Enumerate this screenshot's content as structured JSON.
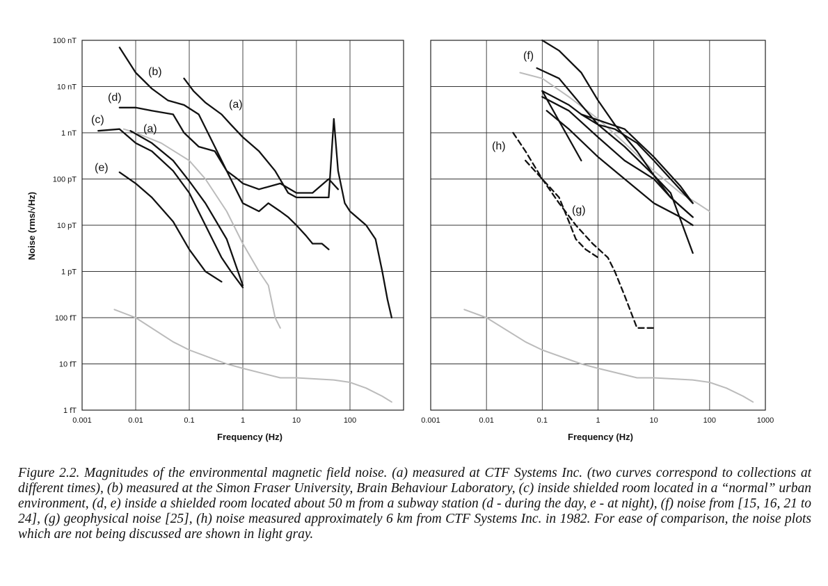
{
  "chart_data": [
    {
      "type": "line",
      "panel": "left",
      "xscale": "log",
      "yscale": "log",
      "xlim": [
        0.001,
        1000
      ],
      "ylim": [
        1e-15,
        1e-07
      ],
      "grid": true,
      "xlabel": "Frequency (Hz)",
      "ylabel": "Noise (rms/√Hz)",
      "xticks": [
        "0.001",
        "0.01",
        "0.1",
        "1",
        "10",
        "100"
      ],
      "yticks": [
        "1 fT",
        "10 fT",
        "100 fT",
        "1 pT",
        "10 pT",
        "100 pT",
        "1 nT",
        "10 nT",
        "100 nT"
      ],
      "series": [
        {
          "name": "(a)",
          "color": "#111111",
          "x": [
            0.008,
            0.02,
            0.05,
            0.1,
            0.2,
            0.5,
            1
          ],
          "y": [
            1.1e-09,
            6e-10,
            2.5e-10,
            9e-11,
            3e-11,
            5e-12,
            5e-13
          ]
        },
        {
          "name": "(a)",
          "color": "#111111",
          "x": [
            0.08,
            0.12,
            0.2,
            0.4,
            0.6,
            1,
            2,
            4,
            7,
            10,
            20,
            40,
            50,
            60,
            80,
            100,
            200,
            300,
            400,
            500,
            600
          ],
          "y": [
            1.5e-08,
            8e-09,
            4.5e-09,
            2.5e-09,
            1.5e-09,
            8e-10,
            4e-10,
            1.5e-10,
            5e-11,
            4e-11,
            4e-11,
            4e-11,
            2e-09,
            1.5e-10,
            3e-11,
            2e-11,
            1e-11,
            5e-12,
            1e-12,
            2.5e-13,
            1e-13
          ]
        },
        {
          "name": "(b)",
          "color": "#111111",
          "x": [
            0.005,
            0.01,
            0.02,
            0.04,
            0.08,
            0.15,
            0.3,
            0.5,
            1,
            2,
            3,
            5,
            7,
            10,
            15,
            20,
            30,
            40
          ],
          "y": [
            7e-08,
            2e-08,
            9e-09,
            5e-09,
            4e-09,
            2.5e-09,
            5e-10,
            1.5e-10,
            3e-11,
            2e-11,
            3e-11,
            2e-11,
            1.5e-11,
            1e-11,
            6e-12,
            4e-12,
            4e-12,
            3e-12
          ]
        },
        {
          "name": "(c)",
          "color": "#111111",
          "x": [
            0.002,
            0.005,
            0.01,
            0.02,
            0.05,
            0.1,
            0.2,
            0.4,
            0.6,
            1
          ],
          "y": [
            1.1e-09,
            1.2e-09,
            6e-10,
            4e-10,
            1.5e-10,
            5e-11,
            1e-11,
            2e-12,
            1e-12,
            4.5e-13
          ]
        },
        {
          "name": "(d)",
          "color": "#111111",
          "x": [
            0.005,
            0.01,
            0.02,
            0.05,
            0.08,
            0.15,
            0.3,
            0.5,
            0.8,
            1,
            2,
            5,
            10,
            20,
            40,
            60
          ],
          "y": [
            3.5e-09,
            3.5e-09,
            3e-09,
            2.5e-09,
            1e-09,
            5e-10,
            4e-10,
            1.5e-10,
            1e-10,
            8e-11,
            6e-11,
            8e-11,
            5e-11,
            5e-11,
            1e-10,
            6e-11
          ]
        },
        {
          "name": "(e)",
          "color": "#111111",
          "x": [
            0.005,
            0.01,
            0.02,
            0.05,
            0.1,
            0.2,
            0.4
          ],
          "y": [
            1.4e-10,
            8e-11,
            4e-11,
            1.2e-11,
            3e-12,
            1e-12,
            6e-13
          ]
        },
        {
          "name": "",
          "color": "#bbbbbb",
          "x": [
            0.006,
            0.01,
            0.03,
            0.1,
            0.2,
            0.5,
            1,
            2,
            3,
            4,
            5
          ],
          "y": [
            1.2e-09,
            1e-09,
            6e-10,
            2.5e-10,
            1e-10,
            2e-11,
            4e-12,
            1e-12,
            5e-13,
            1e-13,
            6e-14
          ]
        },
        {
          "name": "",
          "color": "#bbbbbb",
          "x": [
            0.004,
            0.01,
            0.05,
            0.1,
            0.5,
            1,
            5,
            10,
            50,
            100,
            200,
            400,
            600
          ],
          "y": [
            1.5e-13,
            1e-13,
            3e-14,
            2e-14,
            1e-14,
            8e-15,
            5e-15,
            5e-15,
            4.5e-15,
            4e-15,
            3e-15,
            2e-15,
            1.5e-15
          ]
        }
      ]
    },
    {
      "type": "line",
      "panel": "right",
      "xscale": "log",
      "yscale": "log",
      "xlim": [
        0.001,
        1000
      ],
      "ylim": [
        1e-15,
        1e-07
      ],
      "grid": true,
      "xlabel": "Frequency (Hz)",
      "xticks": [
        "0.001",
        "0.01",
        "0.1",
        "1",
        "10",
        "100",
        "1000"
      ],
      "series": [
        {
          "name": "(f)",
          "color": "#111111",
          "x": [
            0.1,
            0.2,
            0.5,
            1,
            2,
            5,
            10,
            20,
            50
          ],
          "y": [
            1e-07,
            6e-08,
            2e-08,
            5e-09,
            1.5e-09,
            4e-10,
            1.2e-10,
            4e-11,
            1.5e-11
          ]
        },
        {
          "name": "(f)",
          "color": "#111111",
          "x": [
            0.08,
            0.2,
            0.5,
            1,
            3,
            10,
            20,
            50
          ],
          "y": [
            2.5e-08,
            1.5e-08,
            4e-09,
            1.5e-09,
            5e-10,
            1.2e-10,
            5e-11,
            2.5e-12
          ]
        },
        {
          "name": "(f)",
          "color": "#111111",
          "x": [
            0.1,
            0.3,
            0.5,
            1,
            2,
            5,
            10,
            20,
            50
          ],
          "y": [
            8e-09,
            4e-09,
            2.5e-09,
            1.5e-09,
            1.2e-09,
            6e-10,
            2.5e-10,
            1e-10,
            3e-11
          ]
        },
        {
          "name": "(f)",
          "color": "#111111",
          "x": [
            0.1,
            0.3,
            1,
            3,
            10,
            20,
            50
          ],
          "y": [
            6e-09,
            3e-09,
            8e-10,
            2.5e-10,
            1e-10,
            4e-11,
            1.5e-11
          ]
        },
        {
          "name": "(f)",
          "color": "#111111",
          "x": [
            0.12,
            0.3,
            1,
            3,
            10,
            30,
            50
          ],
          "y": [
            3e-09,
            1.2e-09,
            3e-10,
            1e-10,
            3e-11,
            1.5e-11,
            1e-11
          ]
        },
        {
          "name": "(f)",
          "color": "#111111",
          "x": [
            0.1,
            0.5
          ],
          "y": [
            8e-09,
            2.5e-10
          ]
        },
        {
          "name": "(f)",
          "color": "#111111",
          "x": [
            0.5,
            3,
            10,
            30,
            50
          ],
          "y": [
            2.5e-09,
            1.2e-09,
            3e-10,
            7e-11,
            3e-11
          ]
        },
        {
          "name": "(h)",
          "color": "#111111",
          "dashed": true,
          "x": [
            0.03,
            0.05,
            0.1,
            0.2,
            0.4,
            0.8,
            1.5,
            2,
            3,
            5,
            10
          ],
          "y": [
            1e-09,
            4e-10,
            1e-10,
            3e-11,
            1e-11,
            4e-12,
            2e-12,
            1e-12,
            3e-13,
            6e-14,
            6e-14
          ]
        },
        {
          "name": "(g)",
          "color": "#111111",
          "dashed": true,
          "x": [
            0.05,
            0.1,
            0.2,
            0.3,
            0.4,
            0.6,
            1
          ],
          "y": [
            2.5e-10,
            1e-10,
            4e-11,
            1.2e-11,
            5e-12,
            3e-12,
            2e-12
          ]
        },
        {
          "name": "",
          "color": "#bbbbbb",
          "x": [
            0.04,
            0.1,
            0.3,
            1,
            3,
            10,
            30,
            60,
            100
          ],
          "y": [
            2e-08,
            1.5e-08,
            6e-09,
            2e-09,
            6e-10,
            1.5e-10,
            5e-11,
            3e-11,
            2e-11
          ]
        },
        {
          "name": "",
          "color": "#bbbbbb",
          "x": [
            0.004,
            0.01,
            0.05,
            0.1,
            0.5,
            1,
            5,
            10,
            50,
            100,
            200,
            400,
            600
          ],
          "y": [
            1.5e-13,
            1e-13,
            3e-14,
            2e-14,
            1e-14,
            8e-15,
            5e-15,
            5e-15,
            4.5e-15,
            4e-15,
            3e-15,
            2e-15,
            1.5e-15
          ]
        }
      ]
    }
  ],
  "labels_left": [
    "(b)",
    "(d)",
    "(c)",
    "(a)",
    "(a)",
    "(e)"
  ],
  "labels_right": [
    "(f)",
    "(h)",
    "(g)"
  ],
  "caption": "Figure 2.2. Magnitudes of the environmental magnetic field noise. (a) measured at CTF Systems Inc. (two curves correspond to collections at different times), (b) measured at the Simon Fraser University, Brain Behaviour Laboratory, (c) inside shielded room located in a “normal” urban environment, (d, e) inside a shielded room located about 50 m from a subway station (d - during the day, e - at night), (f) noise from [15, 16, 21 to 24], (g) geophysical noise [25], (h) noise measured approximately 6 km from CTF Systems Inc. in 1982. For ease of comparison, the noise plots which are not being discussed are shown in light gray."
}
